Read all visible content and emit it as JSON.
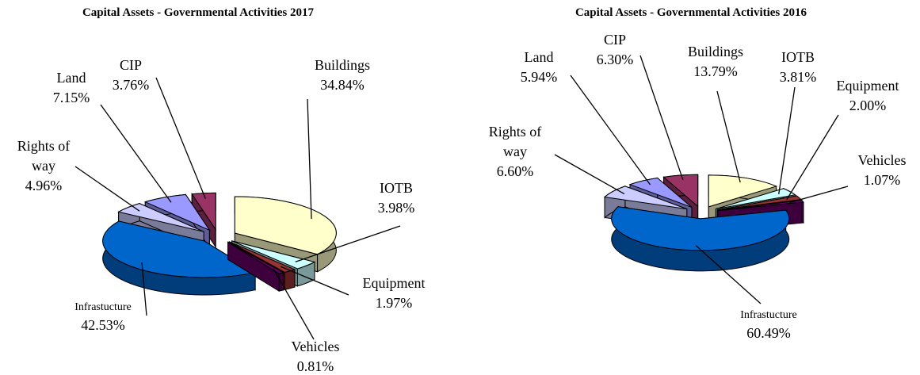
{
  "chart_data": [
    {
      "type": "pie",
      "title": "Capital Assets - Governmental Activities  2017",
      "categories": [
        "Buildings",
        "IOTB",
        "Equipment",
        "Vehicles",
        "Infrastucture",
        "Rights of way",
        "Land",
        "CIP"
      ],
      "values": [
        34.84,
        3.98,
        1.97,
        0.81,
        42.53,
        4.96,
        7.15,
        3.76
      ],
      "value_labels": [
        "34.84%",
        "3.98%",
        "1.97%",
        "0.81%",
        "42.53%",
        "4.96%",
        "7.15%",
        "3.76%"
      ],
      "colors": [
        "#ffffcc",
        "#ccffff",
        "#993333",
        "#660066",
        "#0066cc",
        "#ccccff",
        "#9999ff",
        "#993366"
      ]
    },
    {
      "type": "pie",
      "title": "Capital Assets - Governmental Activities  2016",
      "categories": [
        "Buildings",
        "IOTB",
        "Equipment",
        "Vehicles",
        "Infrastucture",
        "Rights of way",
        "Land",
        "CIP"
      ],
      "values": [
        13.79,
        3.81,
        2.0,
        1.07,
        60.49,
        6.6,
        5.94,
        6.3
      ],
      "value_labels": [
        "13.79%",
        "3.81%",
        "2.00%",
        "1.07%",
        "60.49%",
        "6.60%",
        "5.94%",
        "6.30%"
      ],
      "colors": [
        "#ffffcc",
        "#ccffff",
        "#993333",
        "#660066",
        "#0066cc",
        "#ccccff",
        "#9999ff",
        "#993366"
      ]
    }
  ]
}
